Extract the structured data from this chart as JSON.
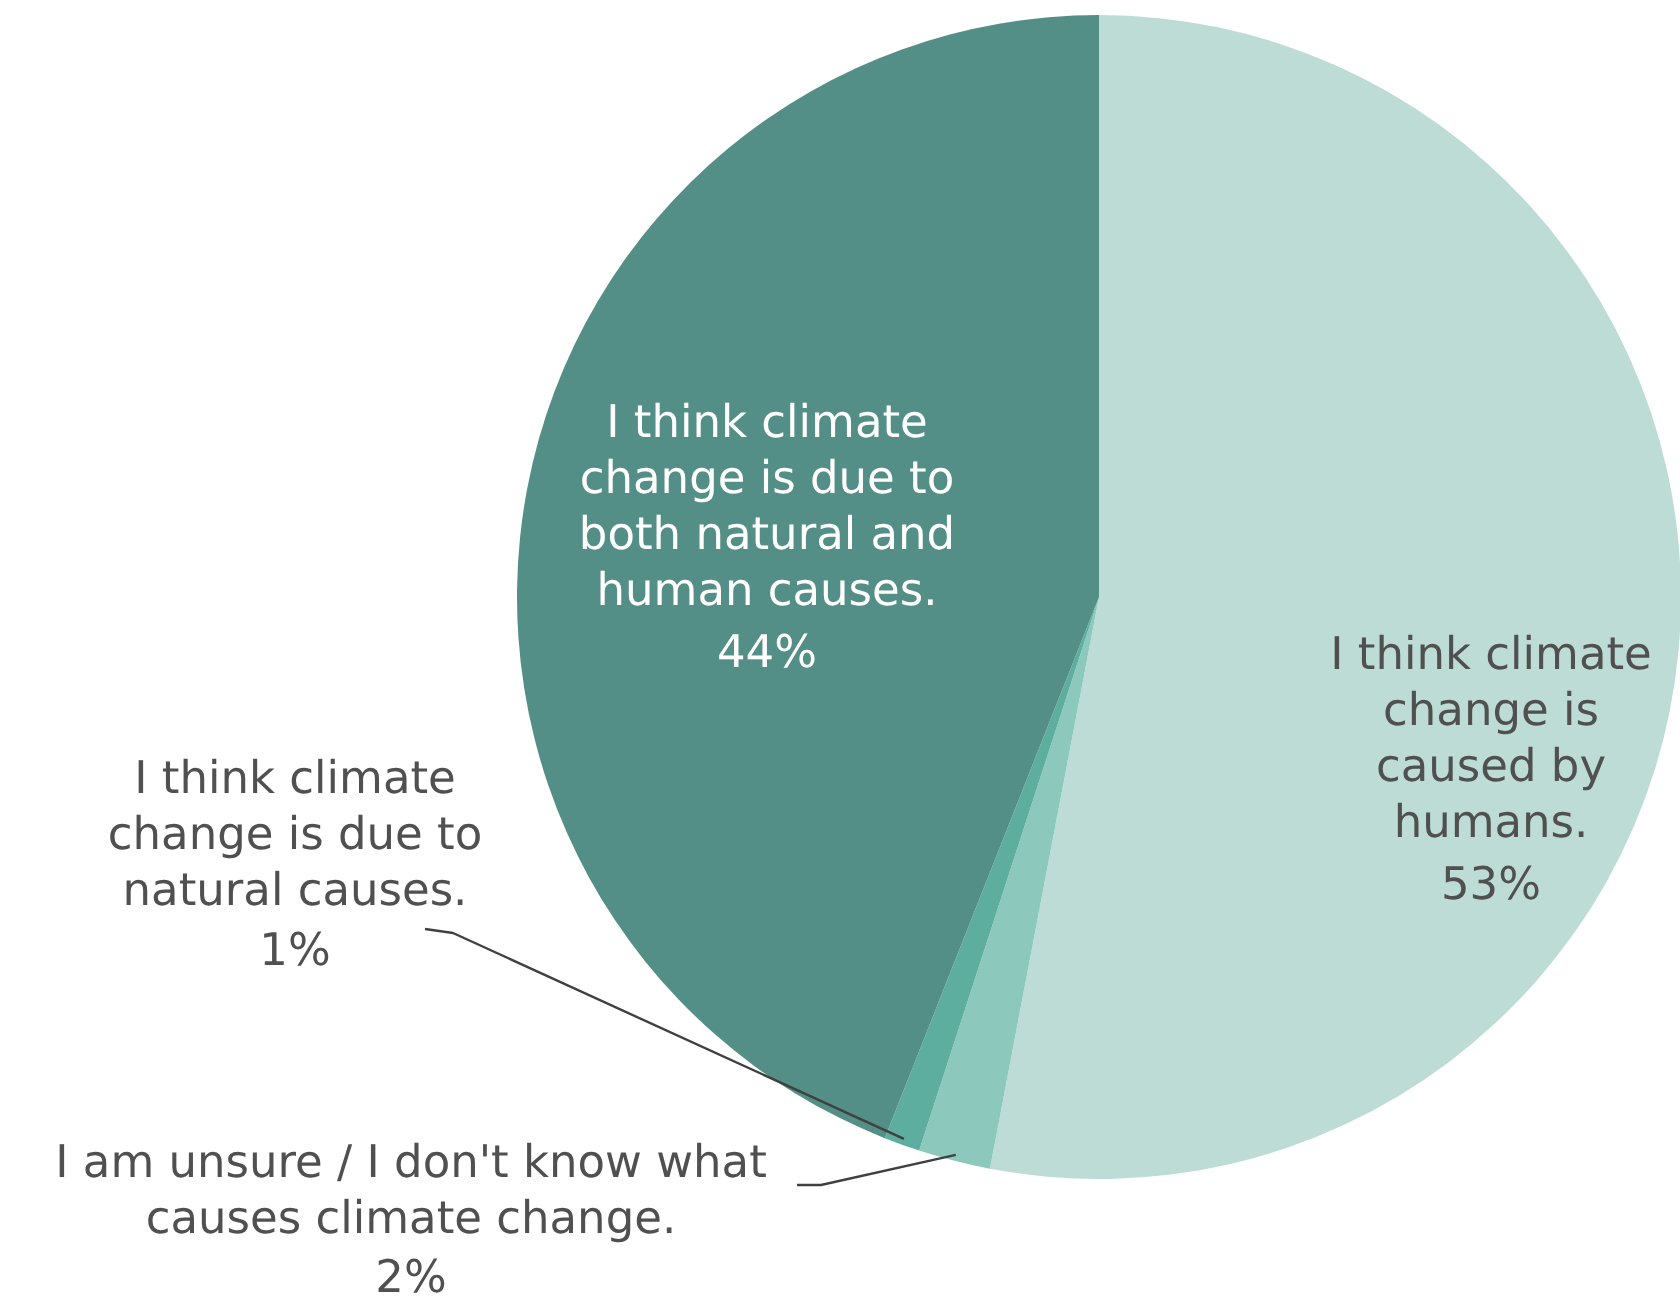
{
  "chart_data": {
    "type": "pie",
    "categories": [
      "I think climate change is caused by humans.",
      "I am unsure / I don't know what causes climate change.",
      "I think climate change is due to natural causes.",
      "I think climate change is due to both natural and human causes."
    ],
    "values": [
      53,
      2,
      1,
      44
    ],
    "colors": [
      "#bcdcd5",
      "#8cc9bc",
      "#5eae9f",
      "#538f86"
    ],
    "value_labels": [
      "53%",
      "2%",
      "1%",
      "44%"
    ]
  }
}
